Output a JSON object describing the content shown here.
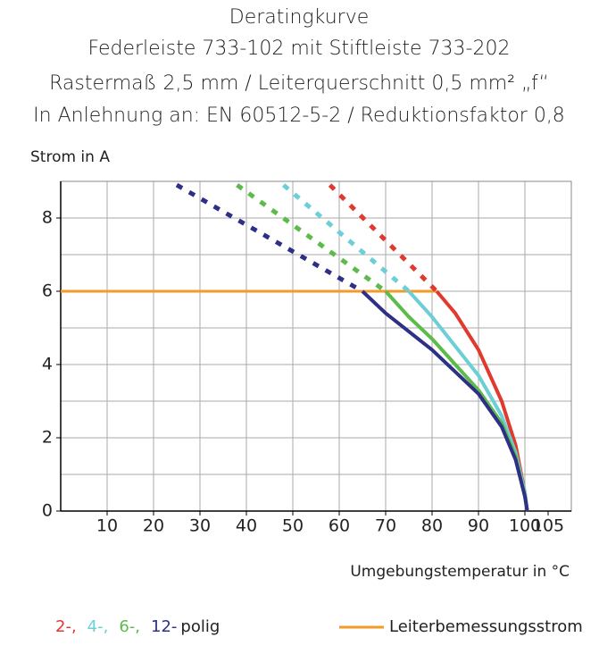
{
  "chart_data": {
    "type": "line",
    "title": [
      "Deratingkurve",
      "Federleiste 733-102 mit Stiftleiste 733-202",
      "Rastermaß 2,5 mm / Leiterquerschnitt 0,5 mm² „f“",
      "In Anlehnung an: EN 60512-5-2 / Reduktionsfaktor 0,8"
    ],
    "ylabel": "Strom in A",
    "xlabel": "Umgebungstemperatur in °C",
    "xlim": [
      0,
      110
    ],
    "xticks": [
      10,
      20,
      30,
      40,
      50,
      60,
      70,
      80,
      90,
      100,
      105
    ],
    "xgrid": [
      10,
      20,
      30,
      40,
      50,
      60,
      70,
      80,
      90,
      100
    ],
    "ylim": [
      0,
      9
    ],
    "yticks": [
      0,
      2,
      4,
      6,
      8
    ],
    "ygrid": [
      1,
      2,
      3,
      4,
      5,
      6,
      7,
      8
    ],
    "grid": true,
    "legend_suffix": "polig",
    "series": [
      {
        "name": "2-,",
        "color": "#e03a2f",
        "segments": [
          {
            "style": "dashed",
            "x": [
              58,
              81
            ],
            "values": [
              8.9,
              6
            ]
          },
          {
            "style": "solid",
            "x": [
              81,
              85,
              90,
              95,
              98,
              100,
              100.5
            ],
            "values": [
              6,
              5.4,
              4.4,
              3.0,
              1.8,
              0.5,
              0
            ]
          }
        ]
      },
      {
        "name": "4-,",
        "color": "#6ccfd6",
        "segments": [
          {
            "style": "dashed",
            "x": [
              48,
              75
            ],
            "values": [
              8.9,
              6
            ]
          },
          {
            "style": "solid",
            "x": [
              75,
              80,
              85,
              90,
              95,
              98,
              100,
              100.5
            ],
            "values": [
              6,
              5.3,
              4.5,
              3.7,
              2.6,
              1.6,
              0.5,
              0
            ]
          }
        ]
      },
      {
        "name": "6-,",
        "color": "#5cbb4a",
        "segments": [
          {
            "style": "dashed",
            "x": [
              38,
              70
            ],
            "values": [
              8.9,
              6
            ]
          },
          {
            "style": "solid",
            "x": [
              70,
              75,
              80,
              85,
              90,
              95,
              98,
              100,
              100.5
            ],
            "values": [
              6,
              5.3,
              4.7,
              4.0,
              3.3,
              2.4,
              1.5,
              0.4,
              0
            ]
          }
        ]
      },
      {
        "name": "12-",
        "color": "#2e2f86",
        "segments": [
          {
            "style": "dashed",
            "x": [
              25,
              65
            ],
            "values": [
              8.9,
              6
            ]
          },
          {
            "style": "solid",
            "x": [
              65,
              70,
              75,
              80,
              85,
              90,
              95,
              98,
              100,
              100.5
            ],
            "values": [
              6,
              5.4,
              4.9,
              4.4,
              3.8,
              3.2,
              2.3,
              1.4,
              0.4,
              0
            ]
          }
        ]
      }
    ],
    "limit_line": {
      "name": "Leiterbemessungsstrom",
      "color": "#f39a2b",
      "x": [
        0,
        81
      ],
      "values": [
        6,
        6
      ]
    }
  }
}
